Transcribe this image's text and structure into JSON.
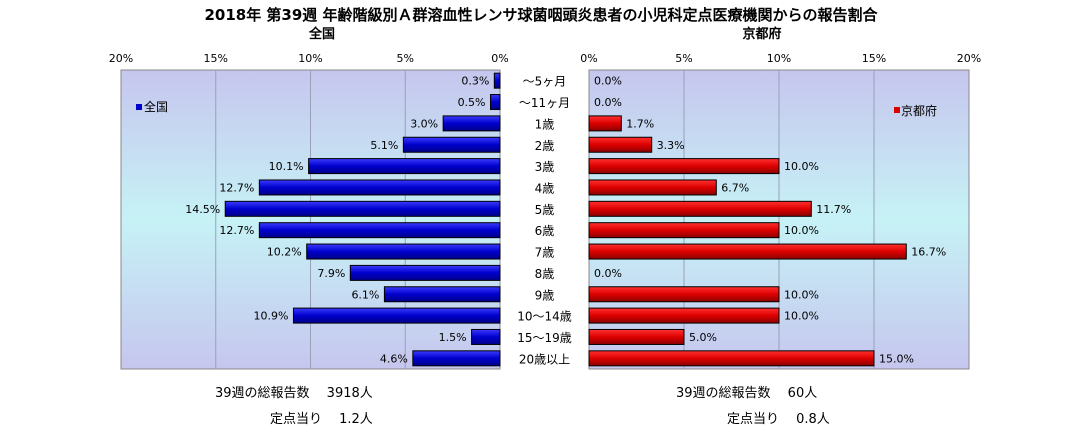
{
  "chart_data": {
    "type": "bar",
    "title": "2018年 第39週 年齢階級別Ａ群溶血性レンサ球菌咽頭炎患者の小児科定点医療機関からの報告割合",
    "categories": [
      "～5ヶ月",
      "～11ヶ月",
      "1歳",
      "2歳",
      "3歳",
      "4歳",
      "5歳",
      "6歳",
      "7歳",
      "8歳",
      "9歳",
      "10～14歳",
      "15～19歳",
      "20歳以上"
    ],
    "xlim": [
      0,
      20
    ],
    "ticks": [
      "0%",
      "5%",
      "10%",
      "15%",
      "20%"
    ],
    "grid": true,
    "panels": [
      {
        "name": "全国",
        "title": "全国",
        "direction": "left",
        "color": "#0000cc",
        "values": [
          0.3,
          0.5,
          3.0,
          5.1,
          10.1,
          12.7,
          14.5,
          12.7,
          10.2,
          7.9,
          6.1,
          10.9,
          1.5,
          4.6
        ],
        "labels": [
          "0.3%",
          "0.5%",
          "3.0%",
          "5.1%",
          "10.1%",
          "12.7%",
          "14.5%",
          "12.7%",
          "10.2%",
          "7.9%",
          "6.1%",
          "10.9%",
          "1.5%",
          "4.6%"
        ],
        "legend": "全国",
        "legend_position": "top-left"
      },
      {
        "name": "京都府",
        "title": "京都府",
        "direction": "right",
        "color": "#dd0000",
        "values": [
          0.0,
          0.0,
          1.7,
          3.3,
          10.0,
          6.7,
          11.7,
          10.0,
          16.7,
          0.0,
          10.0,
          10.0,
          5.0,
          15.0
        ],
        "labels": [
          "0.0%",
          "0.0%",
          "1.7%",
          "3.3%",
          "10.0%",
          "6.7%",
          "11.7%",
          "10.0%",
          "16.7%",
          "0.0%",
          "10.0%",
          "10.0%",
          "5.0%",
          "15.0%"
        ],
        "legend": "京都府",
        "legend_position": "top-right"
      }
    ]
  },
  "footer": {
    "left_total": "39週の総報告数　 3918人",
    "left_per": "定点当り　 1.2人",
    "right_total": "39週の総報告数　 60人",
    "right_per": "定点当り　 0.8人"
  }
}
